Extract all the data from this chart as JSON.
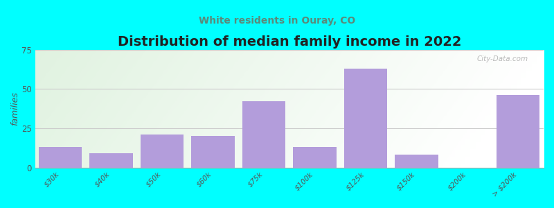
{
  "title": "Distribution of median family income in 2022",
  "subtitle": "White residents in Ouray, CO",
  "ylabel": "families",
  "categories": [
    "$30k",
    "$40k",
    "$50k",
    "$60k",
    "$75k",
    "$100k",
    "$125k",
    "$150k",
    "$200k",
    "> $200k"
  ],
  "values": [
    13,
    9,
    21,
    20,
    42,
    13,
    63,
    8,
    0,
    46
  ],
  "bar_color": "#b39ddb",
  "bg_color": "#00ffff",
  "ylim": [
    0,
    75
  ],
  "yticks": [
    0,
    25,
    50,
    75
  ],
  "title_fontsize": 14,
  "subtitle_fontsize": 10,
  "subtitle_color": "#5a8a7a",
  "watermark": "City-Data.com",
  "grid_color": "#cccccc",
  "tick_color": "#555555"
}
